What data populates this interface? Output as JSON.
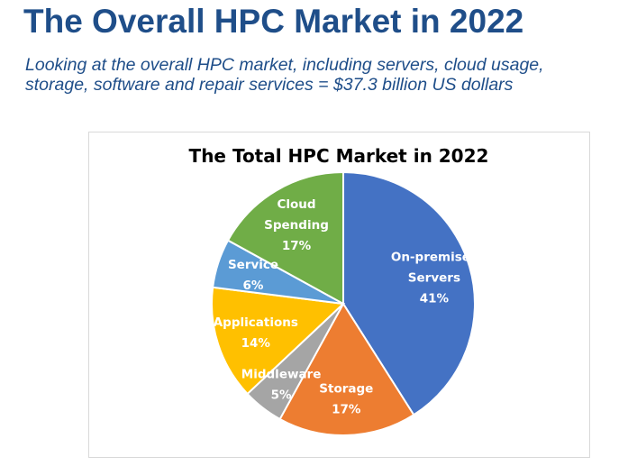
{
  "slide": {
    "title": "The Overall HPC Market in 2022",
    "subtitle_line1": "Looking at the overall HPC market, including servers, cloud usage,",
    "subtitle_line2": "storage, software and repair services = $37.3 billion US dollars"
  },
  "chart_data": {
    "type": "pie",
    "title": "The Total HPC Market in 2022",
    "legend": "none",
    "slices": [
      {
        "name": "On-premises Servers",
        "label_lines": [
          "On-premises",
          "Servers"
        ],
        "percent_label": "41%",
        "value": 41,
        "color": "#4472c4"
      },
      {
        "name": "Storage",
        "label_lines": [
          "Storage"
        ],
        "percent_label": "17%",
        "value": 17,
        "color": "#ed7d31"
      },
      {
        "name": "Middleware",
        "label_lines": [
          "Middleware"
        ],
        "percent_label": "5%",
        "value": 5,
        "color": "#a5a5a5"
      },
      {
        "name": "Applications",
        "label_lines": [
          "Applications"
        ],
        "percent_label": "14%",
        "value": 14,
        "color": "#ffc000"
      },
      {
        "name": "Service",
        "label_lines": [
          "Service"
        ],
        "percent_label": "6%",
        "value": 6,
        "color": "#5b9bd5"
      },
      {
        "name": "Cloud Spending",
        "label_lines": [
          "Cloud",
          "Spending"
        ],
        "percent_label": "17%",
        "value": 17,
        "color": "#70ad47"
      }
    ]
  }
}
